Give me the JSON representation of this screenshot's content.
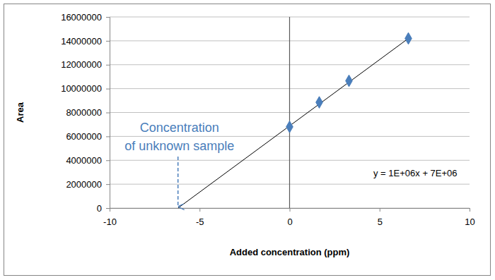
{
  "chart_data": {
    "type": "scatter",
    "x_label": "Added concentration (ppm)",
    "y_label": "Area",
    "xlim": [
      -10,
      10
    ],
    "xticks": [
      -10,
      -5,
      0,
      5,
      10
    ],
    "ylim": [
      0,
      16000000
    ],
    "yticks": [
      0,
      2000000,
      4000000,
      6000000,
      8000000,
      10000000,
      12000000,
      14000000,
      16000000
    ],
    "grid": true,
    "series": [
      {
        "type": "scatter",
        "color": "#4a7ebb",
        "marker": "diamond",
        "x": [
          0,
          1.65,
          3.3,
          6.6
        ],
        "values": [
          6800000,
          8850000,
          10650000,
          14200000
        ]
      },
      {
        "type": "line",
        "color": "#000000",
        "line_style": "solid",
        "x": [
          -6.2,
          6.6
        ],
        "values": [
          0,
          14200000
        ]
      }
    ],
    "annotations": [
      {
        "text": [
          "Concentration",
          "of unknown sample"
        ],
        "x": -6.2,
        "y": 0,
        "color": "#4a7ebb"
      },
      {
        "text": [
          "y = 1E+06x + 7E+06"
        ]
      }
    ]
  }
}
